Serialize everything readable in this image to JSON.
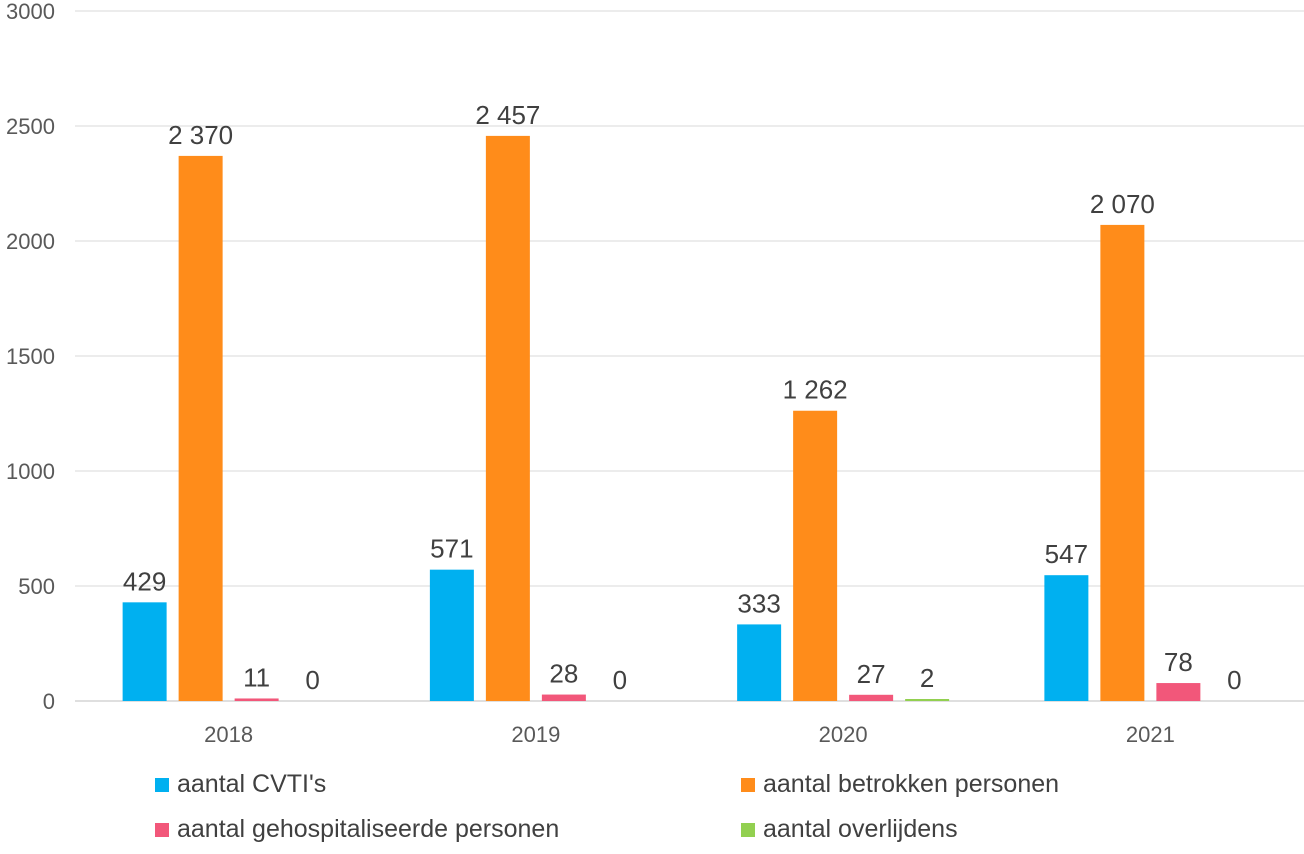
{
  "chart_data": {
    "type": "bar",
    "categories": [
      "2018",
      "2019",
      "2020",
      "2021"
    ],
    "series": [
      {
        "name": "aantal CVTI's",
        "color": "#00B0F0",
        "values": [
          429,
          571,
          333,
          547
        ],
        "labels": [
          "429",
          "571",
          "333",
          "547"
        ]
      },
      {
        "name": "aantal betrokken personen",
        "color": "#FF8C1A",
        "values": [
          2370,
          2457,
          1262,
          2070
        ],
        "labels": [
          "2 370",
          "2 457",
          "1 262",
          "2 070"
        ]
      },
      {
        "name": "aantal gehospitaliseerde personen",
        "color": "#F2577A",
        "values": [
          11,
          28,
          27,
          78
        ],
        "labels": [
          "11",
          "28",
          "27",
          "78"
        ]
      },
      {
        "name": "aantal overlijdens",
        "color": "#92D050",
        "values": [
          0,
          0,
          2,
          0
        ],
        "labels": [
          "0",
          "0",
          "2",
          "0"
        ]
      }
    ],
    "ylim": [
      0,
      3000
    ],
    "yticks": [
      "0",
      "500",
      "1000",
      "1500",
      "2000",
      "2500",
      "3000"
    ],
    "ytick_values": [
      0,
      500,
      1000,
      1500,
      2000,
      2500,
      3000
    ],
    "grid": true,
    "legend_position": "bottom"
  }
}
